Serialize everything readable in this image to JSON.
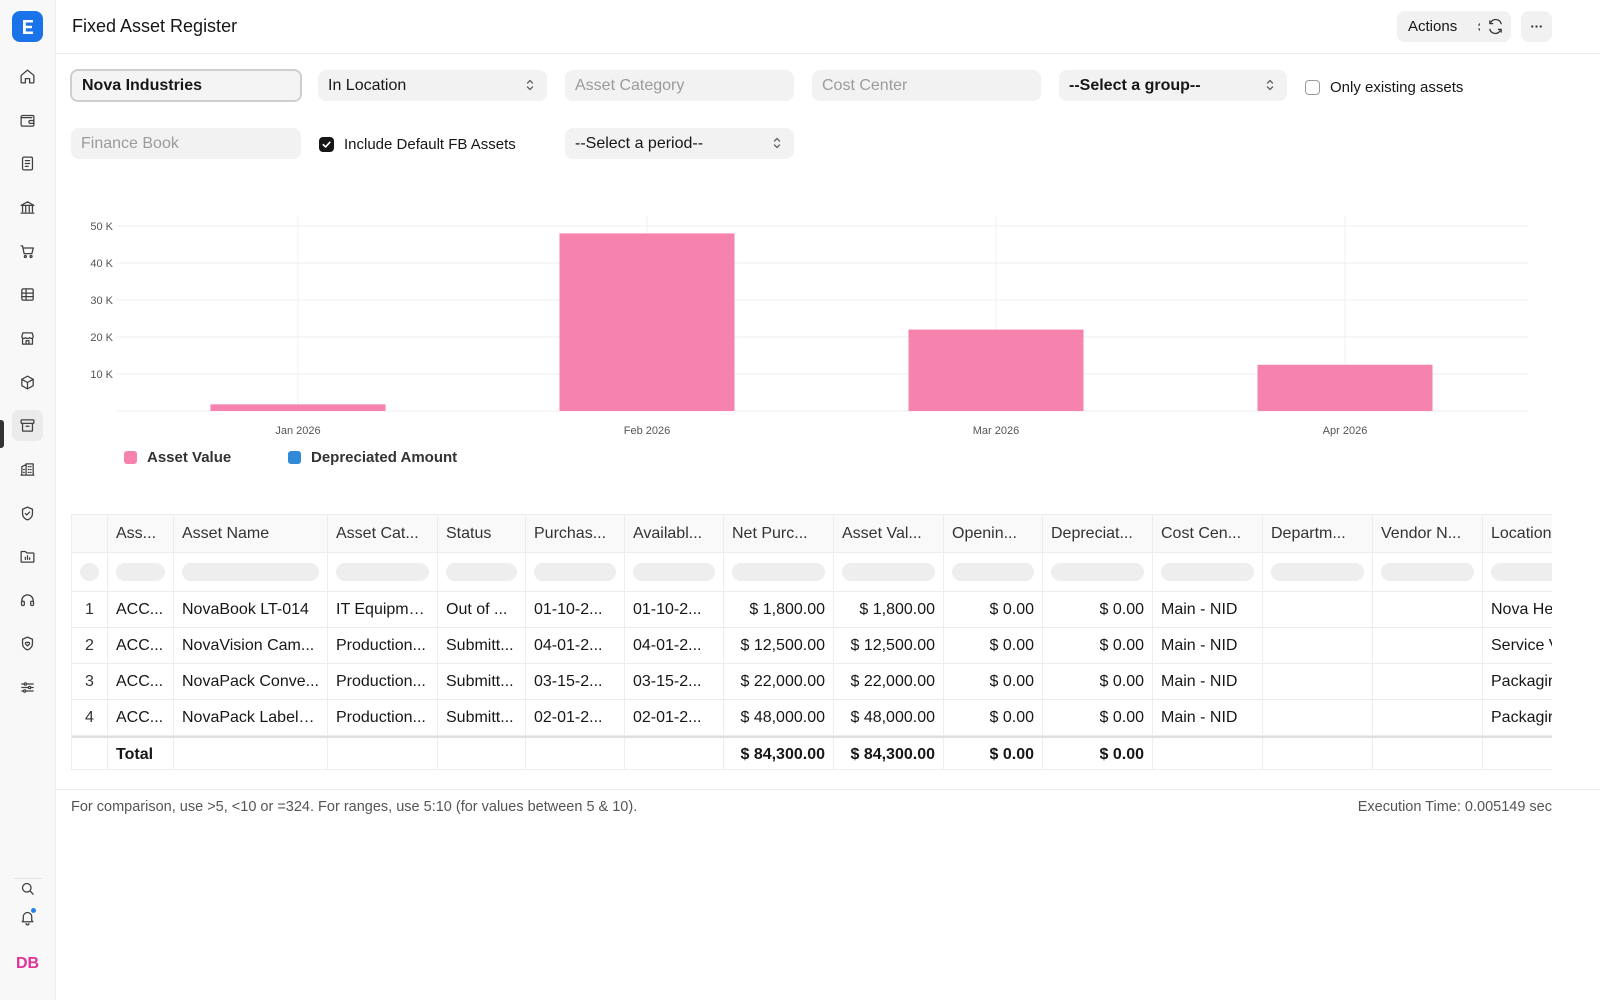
{
  "header": {
    "title": "Fixed Asset Register",
    "actions_label": "Actions"
  },
  "user": {
    "initials": "DB"
  },
  "filters": {
    "company": "Nova Industries",
    "status": "In Location",
    "asset_category_placeholder": "Asset Category",
    "cost_center_placeholder": "Cost Center",
    "group_by": "--Select a group--",
    "only_existing_label": "Only existing assets",
    "only_existing_checked": false,
    "finance_book_placeholder": "Finance Book",
    "include_default_fb_label": "Include Default FB Assets",
    "include_default_fb_checked": true,
    "period": "--Select a period--"
  },
  "chart_data": {
    "type": "bar",
    "categories": [
      "Jan 2026",
      "Feb 2026",
      "Mar 2026",
      "Apr 2026"
    ],
    "series": [
      {
        "name": "Asset Value",
        "color": "#f683ae",
        "values": [
          1800,
          48000,
          22000,
          12500
        ]
      },
      {
        "name": "Depreciated Amount",
        "color": "#318ad8",
        "values": [
          0,
          0,
          0,
          0
        ]
      }
    ],
    "yticks": [
      "10 K",
      "20 K",
      "30 K",
      "40 K",
      "50 K"
    ],
    "ylim": [
      0,
      50000
    ],
    "grid": true,
    "legend_position": "bottom-left"
  },
  "table": {
    "columns": [
      "Ass...",
      "Asset Name",
      "Asset Cat...",
      "Status",
      "Purchas...",
      "Availabl...",
      "Net Purc...",
      "Asset Val...",
      "Openin...",
      "Depreciat...",
      "Cost Cen...",
      "Departm...",
      "Vendor N...",
      "Location"
    ],
    "rows": [
      {
        "index": "1",
        "cells": [
          "ACC...",
          "NovaBook LT-014",
          "IT Equipme...",
          "Out of ...",
          "01-10-2...",
          "01-10-2...",
          "$ 1,800.00",
          "$ 1,800.00",
          "$ 0.00",
          "$ 0.00",
          "Main - NID",
          "",
          "",
          "Nova He"
        ]
      },
      {
        "index": "2",
        "cells": [
          "ACC...",
          "NovaVision Cam...",
          "Production...",
          "Submitt...",
          "04-01-2...",
          "04-01-2...",
          "$ 12,500.00",
          "$ 12,500.00",
          "$ 0.00",
          "$ 0.00",
          "Main - NID",
          "",
          "",
          "Service V"
        ]
      },
      {
        "index": "3",
        "cells": [
          "ACC...",
          "NovaPack Conve...",
          "Production...",
          "Submitt...",
          "03-15-2...",
          "03-15-2...",
          "$ 22,000.00",
          "$ 22,000.00",
          "$ 0.00",
          "$ 0.00",
          "Main - NID",
          "",
          "",
          "Packagir"
        ]
      },
      {
        "index": "4",
        "cells": [
          "ACC...",
          "NovaPack Labele...",
          "Production...",
          "Submitt...",
          "02-01-2...",
          "02-01-2...",
          "$ 48,000.00",
          "$ 48,000.00",
          "$ 0.00",
          "$ 0.00",
          "Main - NID",
          "",
          "",
          "Packagir"
        ]
      }
    ],
    "total": {
      "label": "Total",
      "cells": [
        "",
        "",
        "",
        "",
        "",
        "",
        "$ 84,300.00",
        "$ 84,300.00",
        "$ 0.00",
        "$ 0.00",
        "",
        "",
        "",
        ""
      ]
    }
  },
  "footer": {
    "hint": "For comparison, use >5, <10 or =324. For ranges, use 5:10 (for values between 5 & 10).",
    "execution_time": "Execution Time: 0.005149 sec"
  },
  "sidebar_icons": [
    "home-icon",
    "wallet-icon",
    "document-icon",
    "bank-icon",
    "cart-icon",
    "table-icon",
    "store-icon",
    "package-icon",
    "archive-icon",
    "building-icon",
    "shield-icon",
    "folder-icon",
    "headset-icon",
    "shield-heart-icon",
    "sliders-icon",
    "search-icon",
    "bell-icon"
  ]
}
